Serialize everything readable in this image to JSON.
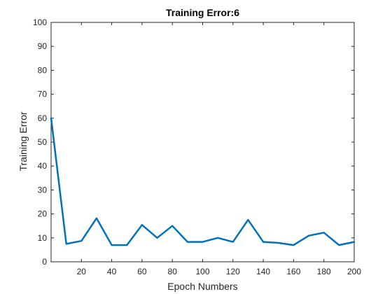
{
  "chart_data": {
    "type": "line",
    "title": "Training Error:6",
    "xlabel": "Epoch Numbers",
    "ylabel": "Training Error",
    "xlim": [
      0,
      200
    ],
    "ylim": [
      0,
      100
    ],
    "x_ticks": [
      20,
      40,
      60,
      80,
      100,
      120,
      140,
      160,
      180,
      200
    ],
    "y_ticks": [
      0,
      10,
      20,
      30,
      40,
      50,
      60,
      70,
      80,
      90,
      100
    ],
    "grid": false,
    "series": [
      {
        "x": [
          0,
          10,
          20,
          30,
          40,
          50,
          60,
          70,
          80,
          90,
          100,
          110,
          120,
          130,
          140,
          150,
          160,
          170,
          180,
          190,
          200
        ],
        "values": [
          60,
          7.5,
          8.7,
          18.2,
          7.0,
          7.0,
          15.4,
          10.0,
          15.0,
          8.3,
          8.3,
          10.0,
          8.3,
          17.5,
          8.3,
          7.9,
          7.0,
          10.9,
          12.2,
          7.0,
          8.3
        ]
      }
    ],
    "colors": {
      "line": "#0072BD",
      "axis": "#262626"
    }
  }
}
